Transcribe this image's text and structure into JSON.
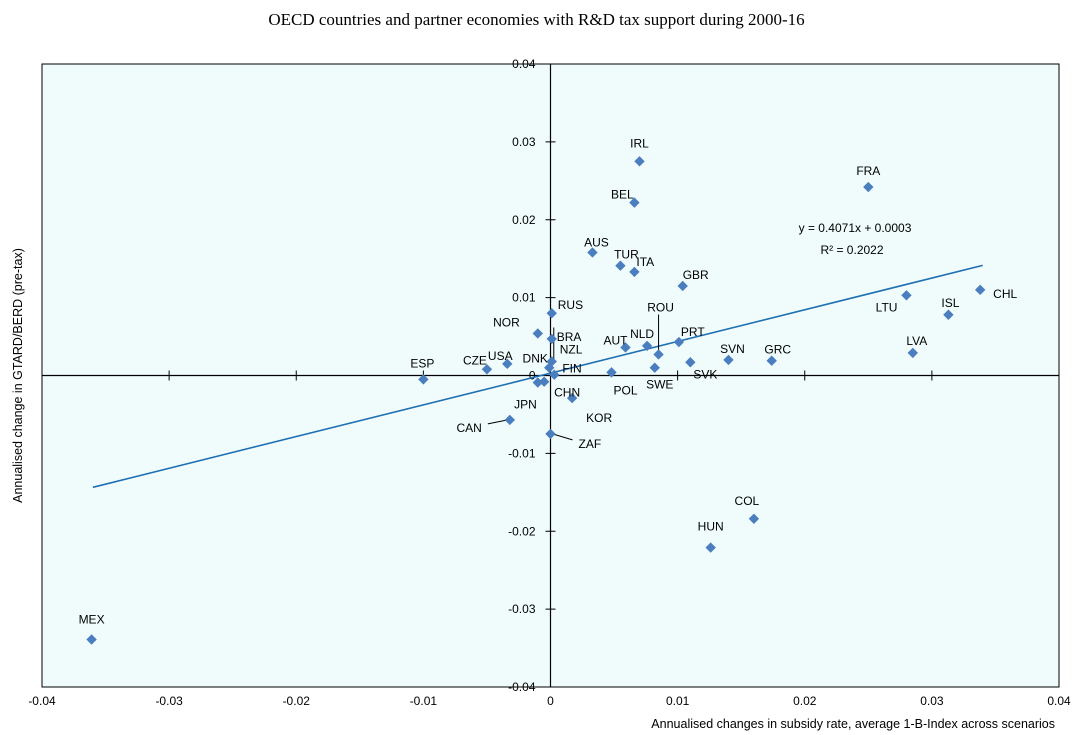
{
  "chart_data": {
    "type": "scatter",
    "title": "OECD countries and partner economies with R&D tax support during 2000-16",
    "xlabel": "Annualised changes in subsidy rate, average 1-B-Index across scenarios",
    "ylabel": "Annualised change in GTARD/BERD (pre-tax)",
    "xlim": [
      -0.04,
      0.04
    ],
    "ylim": [
      -0.04,
      0.04
    ],
    "x_ticks": [
      "-0.04",
      "-0.03",
      "-0.02",
      "-0.01",
      "0",
      "0.01",
      "0.02",
      "0.03",
      "0.04"
    ],
    "y_ticks": [
      "0.04",
      "0.03",
      "0.02",
      "0.01",
      "0",
      "-0.01",
      "-0.02",
      "-0.03",
      "-0.04"
    ],
    "grid": false,
    "plot_background": "#f0fcfc",
    "marker_color": "#4a7ebf",
    "trendline": {
      "slope": 0.4071,
      "intercept": 0.0003,
      "x_range": [
        -0.036,
        0.034
      ],
      "color": "#1f6fb2",
      "equation": "y = 0.4071x + 0.0003",
      "r2_label": "R² = 0.2022"
    },
    "points": [
      {
        "label": "IRL",
        "x": 0.007,
        "y": 0.0275
      },
      {
        "label": "FRA",
        "x": 0.025,
        "y": 0.0242
      },
      {
        "label": "BEL",
        "x": 0.0066,
        "y": 0.0222
      },
      {
        "label": "AUS",
        "x": 0.0033,
        "y": 0.0158
      },
      {
        "label": "TUR",
        "x": 0.0055,
        "y": 0.0141
      },
      {
        "label": "ITA",
        "x": 0.0066,
        "y": 0.0133
      },
      {
        "label": "GBR",
        "x": 0.0104,
        "y": 0.0115
      },
      {
        "label": "CHL",
        "x": 0.0338,
        "y": 0.011
      },
      {
        "label": "LTU",
        "x": 0.028,
        "y": 0.0103
      },
      {
        "label": "ISL",
        "x": 0.0313,
        "y": 0.0078
      },
      {
        "label": "RUS",
        "x": 0.0001,
        "y": 0.008
      },
      {
        "label": "NOR",
        "x": -0.001,
        "y": 0.0054
      },
      {
        "label": "BRA",
        "x": 0.0001,
        "y": 0.0047
      },
      {
        "label": "NZL",
        "x": 0.0001,
        "y": 0.0018
      },
      {
        "label": "AUT",
        "x": 0.0059,
        "y": 0.0036
      },
      {
        "label": "NLD",
        "x": 0.0076,
        "y": 0.0038
      },
      {
        "label": "ROU",
        "x": 0.0085,
        "y": 0.0027
      },
      {
        "label": "PRT",
        "x": 0.0101,
        "y": 0.0043
      },
      {
        "label": "LVA",
        "x": 0.0285,
        "y": 0.0029
      },
      {
        "label": "USA",
        "x": -0.0034,
        "y": 0.0015
      },
      {
        "label": "SVN",
        "x": 0.014,
        "y": 0.002
      },
      {
        "label": "GRC",
        "x": 0.0174,
        "y": 0.0019
      },
      {
        "label": "CZE",
        "x": -0.005,
        "y": 0.0008
      },
      {
        "label": "DNK",
        "x": -0.0001,
        "y": 0.001
      },
      {
        "label": "FIN",
        "x": 0.0003,
        "y": 0.0001
      },
      {
        "label": "SWE",
        "x": 0.0082,
        "y": 0.001
      },
      {
        "label": "SVK",
        "x": 0.011,
        "y": 0.0017
      },
      {
        "label": "POL",
        "x": 0.0048,
        "y": 0.0004
      },
      {
        "label": "ESP",
        "x": -0.01,
        "y": -0.0005
      },
      {
        "label": "CHN",
        "x": -0.0005,
        "y": -0.0008
      },
      {
        "label": "JPN",
        "x": -0.001,
        "y": -0.0009
      },
      {
        "label": "KOR",
        "x": 0.0017,
        "y": -0.0029
      },
      {
        "label": "CAN",
        "x": -0.0032,
        "y": -0.0057
      },
      {
        "label": "ZAF",
        "x": 0.0,
        "y": -0.0075
      },
      {
        "label": "COL",
        "x": 0.016,
        "y": -0.0184
      },
      {
        "label": "HUN",
        "x": 0.0126,
        "y": -0.0221
      },
      {
        "label": "MEX",
        "x": -0.0361,
        "y": -0.0339
      }
    ]
  }
}
